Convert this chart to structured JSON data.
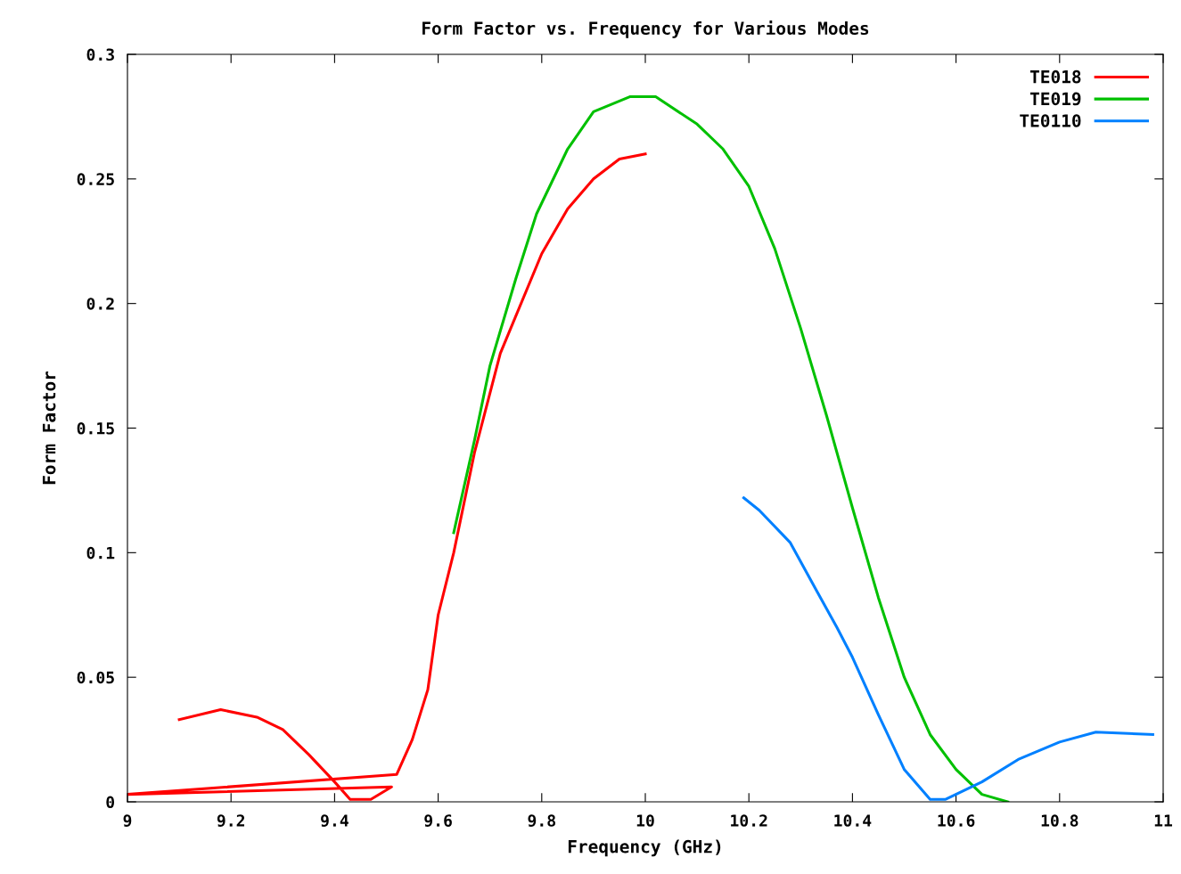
{
  "chart_data": {
    "type": "line",
    "title": "Form Factor vs. Frequency for Various Modes",
    "xlabel": "Frequency (GHz)",
    "ylabel": "Form Factor",
    "xlim": [
      9,
      11
    ],
    "ylim": [
      0,
      0.3
    ],
    "xticks": [
      9,
      9.2,
      9.4,
      9.6,
      9.8,
      10,
      10.2,
      10.4,
      10.6,
      10.8,
      11
    ],
    "yticks": [
      0,
      0.05,
      0.1,
      0.15,
      0.2,
      0.25,
      0.3
    ],
    "grid": false,
    "legend": "top right",
    "marker": "none",
    "line_style": "solid",
    "series": [
      {
        "name": "TE018",
        "color": "#ff0000",
        "x": [
          9.1,
          9.18,
          9.25,
          9.3,
          9.35,
          9.4,
          9.43,
          9.47,
          9.51,
          9.0,
          9.52,
          9.55,
          9.58,
          9.6,
          9.63,
          9.67,
          9.72,
          9.8,
          9.85,
          9.9,
          9.95,
          10.0
        ],
        "values": [
          0.033,
          0.037,
          0.034,
          0.029,
          0.019,
          0.008,
          0.001,
          0.001,
          0.006,
          0.003,
          0.011,
          0.025,
          0.045,
          0.075,
          0.1,
          0.14,
          0.18,
          0.22,
          0.238,
          0.25,
          0.258,
          0.26
        ]
      },
      {
        "name": "TE019",
        "color": "#00c000",
        "x": [
          9.63,
          9.67,
          9.7,
          9.75,
          9.79,
          9.85,
          9.9,
          9.97,
          10.02,
          10.1,
          10.15,
          10.2,
          10.25,
          10.3,
          10.35,
          10.4,
          10.45,
          10.5,
          10.55,
          10.6,
          10.65,
          10.7
        ],
        "values": [
          0.108,
          0.145,
          0.175,
          0.21,
          0.236,
          0.262,
          0.277,
          0.283,
          0.283,
          0.272,
          0.262,
          0.247,
          0.222,
          0.19,
          0.155,
          0.118,
          0.082,
          0.05,
          0.027,
          0.013,
          0.003,
          0.0
        ]
      },
      {
        "name": "TE0110",
        "color": "#0080ff",
        "x": [
          10.19,
          10.22,
          10.28,
          10.33,
          10.37,
          10.4,
          10.45,
          10.5,
          10.55,
          10.58,
          10.65,
          10.72,
          10.8,
          10.87,
          10.98
        ],
        "values": [
          0.122,
          0.117,
          0.104,
          0.085,
          0.07,
          0.058,
          0.035,
          0.013,
          0.001,
          0.001,
          0.008,
          0.017,
          0.024,
          0.028,
          0.027
        ]
      }
    ]
  }
}
